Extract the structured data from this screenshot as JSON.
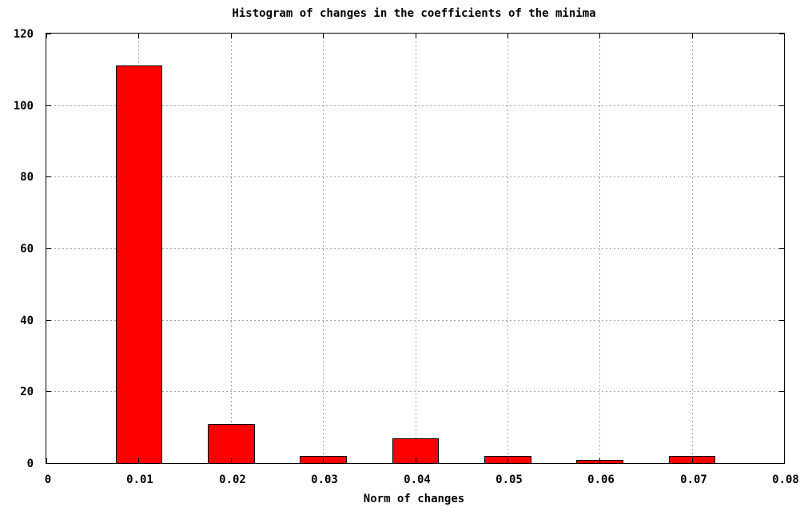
{
  "chart_data": {
    "type": "bar",
    "title": "Histogram of changes in the coefficients of the minima",
    "xlabel": "Norm of changes",
    "ylabel": "",
    "xlim": [
      0,
      0.08
    ],
    "ylim": [
      0,
      120
    ],
    "x_ticks": [
      "0",
      "0.01",
      "0.02",
      "0.03",
      "0.04",
      "0.05",
      "0.06",
      "0.07",
      "0.08"
    ],
    "x_tick_values": [
      0,
      0.01,
      0.02,
      0.03,
      0.04,
      0.05,
      0.06,
      0.07,
      0.08
    ],
    "y_ticks": [
      "0",
      "20",
      "40",
      "60",
      "80",
      "100",
      "120"
    ],
    "y_tick_values": [
      0,
      20,
      40,
      60,
      80,
      100,
      120
    ],
    "bar_width": 0.005,
    "x": [
      0.01,
      0.02,
      0.03,
      0.04,
      0.05,
      0.06,
      0.07
    ],
    "values": [
      111,
      11,
      2,
      7,
      2,
      1,
      2
    ],
    "bar_color": "#ff0000",
    "grid": true
  }
}
